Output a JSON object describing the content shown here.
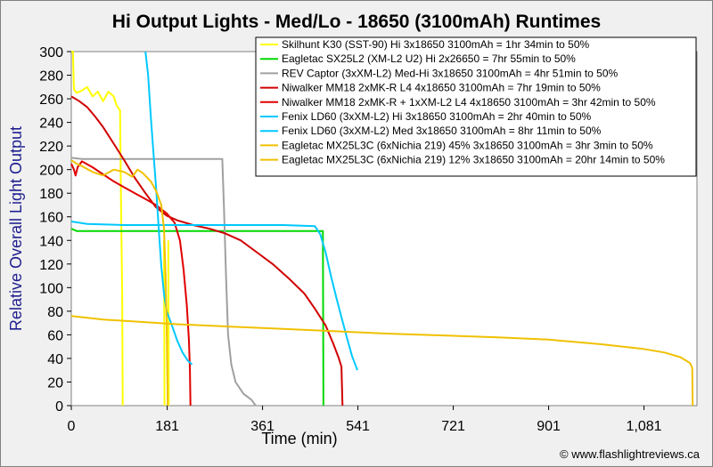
{
  "chart_data": {
    "type": "line",
    "title": "Hi Output Lights - Med/Lo - 18650 (3100mAh) Runtimes",
    "xlabel": "Time (min)",
    "ylabel": "Relative Overall Light Output",
    "xlim": [
      0,
      1181
    ],
    "ylim": [
      0,
      300
    ],
    "x_ticks": [
      0,
      181,
      361,
      541,
      721,
      901,
      1081
    ],
    "x_tick_labels": [
      "0",
      "181",
      "361",
      "541",
      "721",
      "901",
      "1,081"
    ],
    "y_ticks": [
      0,
      20,
      40,
      60,
      80,
      100,
      120,
      140,
      160,
      180,
      200,
      220,
      240,
      260,
      280,
      300
    ],
    "y_tick_labels": [
      "0",
      "20",
      "40",
      "60",
      "80",
      "100",
      "120",
      "140",
      "160",
      "180",
      "200",
      "220",
      "240",
      "260",
      "280",
      "300"
    ],
    "grid": false,
    "legend_position": "top-right",
    "credit": "© www.flashlightreviews.ca",
    "series": [
      {
        "name": "Skilhunt K30 (SST-90) Hi 3x18650 3100mAh = 1hr 34min to 50%",
        "color": "#ffff00",
        "points": [
          [
            0,
            300
          ],
          [
            3,
            300
          ],
          [
            5,
            268
          ],
          [
            10,
            265
          ],
          [
            20,
            267
          ],
          [
            30,
            270
          ],
          [
            40,
            262
          ],
          [
            50,
            266
          ],
          [
            60,
            258
          ],
          [
            70,
            266
          ],
          [
            80,
            262
          ],
          [
            85,
            255
          ],
          [
            92,
            250
          ],
          [
            94,
            165
          ],
          [
            96,
            95
          ],
          [
            97,
            0
          ]
        ]
      },
      {
        "name": "Eagletac SX25L2 (XM-L2 U2) Hi 2x26650 = 7hr 55min to 50%",
        "color": "#00d800",
        "points": [
          [
            0,
            150
          ],
          [
            10,
            148
          ],
          [
            100,
            148
          ],
          [
            200,
            148
          ],
          [
            300,
            148
          ],
          [
            400,
            148
          ],
          [
            474,
            148
          ],
          [
            475,
            148
          ],
          [
            476,
            0
          ]
        ]
      },
      {
        "name": "REV Captor (3xXM-L2) Med-Hi 3x18650 3100mAh = 4hr 51min to 50%",
        "color": "#a0a0a0",
        "points": [
          [
            0,
            210
          ],
          [
            20,
            209
          ],
          [
            100,
            209
          ],
          [
            200,
            209
          ],
          [
            285,
            209
          ],
          [
            288,
            170
          ],
          [
            292,
            110
          ],
          [
            296,
            60
          ],
          [
            302,
            35
          ],
          [
            310,
            20
          ],
          [
            325,
            10
          ],
          [
            340,
            5
          ],
          [
            348,
            0
          ]
        ]
      },
      {
        "name": "Niwalker MM18 2xMK-R L4 4x18650 3100mAh = 7hr 19min to 50%",
        "color": "#d00000",
        "points": [
          [
            0,
            262
          ],
          [
            15,
            258
          ],
          [
            30,
            253
          ],
          [
            45,
            245
          ],
          [
            60,
            236
          ],
          [
            80,
            222
          ],
          [
            100,
            208
          ],
          [
            120,
            193
          ],
          [
            140,
            180
          ],
          [
            160,
            168
          ],
          [
            180,
            161
          ],
          [
            200,
            157
          ],
          [
            230,
            153
          ],
          [
            260,
            150
          ],
          [
            290,
            146
          ],
          [
            320,
            140
          ],
          [
            350,
            130
          ],
          [
            380,
            120
          ],
          [
            410,
            108
          ],
          [
            440,
            95
          ],
          [
            460,
            82
          ],
          [
            480,
            68
          ],
          [
            495,
            52
          ],
          [
            505,
            40
          ],
          [
            510,
            33
          ],
          [
            512,
            0
          ]
        ]
      },
      {
        "name": "Niwalker MM18 2xMK-R + 1xXM-L2 L4 4x18650 3100mAh = 3hr 42min to 50%",
        "color": "#e00000",
        "points": [
          [
            0,
            205
          ],
          [
            5,
            200
          ],
          [
            8,
            195
          ],
          [
            12,
            202
          ],
          [
            20,
            207
          ],
          [
            40,
            202
          ],
          [
            60,
            196
          ],
          [
            80,
            190
          ],
          [
            100,
            185
          ],
          [
            120,
            180
          ],
          [
            140,
            175
          ],
          [
            160,
            170
          ],
          [
            180,
            163
          ],
          [
            195,
            155
          ],
          [
            205,
            140
          ],
          [
            212,
            115
          ],
          [
            218,
            85
          ],
          [
            222,
            55
          ],
          [
            224,
            30
          ],
          [
            225,
            0
          ]
        ]
      },
      {
        "name": "Fenix LD60 (3xXM-L2) Hi 3x18650 3100mAh = 2hr 40min to 50%",
        "color": "#00c8ff",
        "points": [
          [
            140,
            300
          ],
          [
            145,
            280
          ],
          [
            150,
            245
          ],
          [
            155,
            215
          ],
          [
            160,
            185
          ],
          [
            165,
            150
          ],
          [
            170,
            118
          ],
          [
            175,
            95
          ],
          [
            180,
            80
          ],
          [
            190,
            68
          ],
          [
            200,
            55
          ],
          [
            210,
            45
          ],
          [
            220,
            38
          ],
          [
            228,
            35
          ]
        ]
      },
      {
        "name": "Fenix LD60 (3xXM-L2) Med 3x18650 3100mAh = 8hr 11min to 50%",
        "color": "#00c8ff",
        "points": [
          [
            0,
            156
          ],
          [
            30,
            154
          ],
          [
            100,
            153
          ],
          [
            200,
            153
          ],
          [
            300,
            153
          ],
          [
            400,
            153
          ],
          [
            460,
            152
          ],
          [
            470,
            145
          ],
          [
            480,
            130
          ],
          [
            490,
            110
          ],
          [
            500,
            92
          ],
          [
            510,
            75
          ],
          [
            520,
            58
          ],
          [
            530,
            42
          ],
          [
            540,
            30
          ]
        ]
      },
      {
        "name": "Eagletac MX25L3C (6xNichia 219) 45% 3x18650 3100mAh = 3hr 3min to 50%",
        "color": "#f0c000",
        "points": [
          [
            0,
            208
          ],
          [
            10,
            205
          ],
          [
            20,
            203
          ],
          [
            40,
            198
          ],
          [
            60,
            195
          ],
          [
            80,
            200
          ],
          [
            100,
            198
          ],
          [
            115,
            194
          ],
          [
            125,
            200
          ],
          [
            135,
            197
          ],
          [
            150,
            190
          ],
          [
            160,
            182
          ],
          [
            170,
            170
          ],
          [
            175,
            150
          ],
          [
            178,
            110
          ],
          [
            180,
            70
          ],
          [
            181,
            35
          ],
          [
            182,
            0
          ]
        ]
      },
      {
        "name": "Eagletac MX25L3C (6xNichia 219) 12% 3x18650 3100mAh = 20hr 14min to 50%",
        "color": "#f0c000",
        "points": [
          [
            0,
            76
          ],
          [
            60,
            73
          ],
          [
            200,
            69
          ],
          [
            400,
            65
          ],
          [
            600,
            61
          ],
          [
            800,
            58
          ],
          [
            900,
            56
          ],
          [
            1000,
            52
          ],
          [
            1080,
            48
          ],
          [
            1120,
            45
          ],
          [
            1150,
            41
          ],
          [
            1168,
            36
          ],
          [
            1172,
            32
          ],
          [
            1173,
            0
          ]
        ]
      }
    ],
    "extra_marks": [
      {
        "color": "#ffff00",
        "points": [
          [
            175,
            140
          ],
          [
            176,
            0
          ]
        ]
      },
      {
        "color": "#ffff00",
        "points": [
          [
            183,
            140
          ],
          [
            184,
            0
          ]
        ]
      }
    ]
  }
}
